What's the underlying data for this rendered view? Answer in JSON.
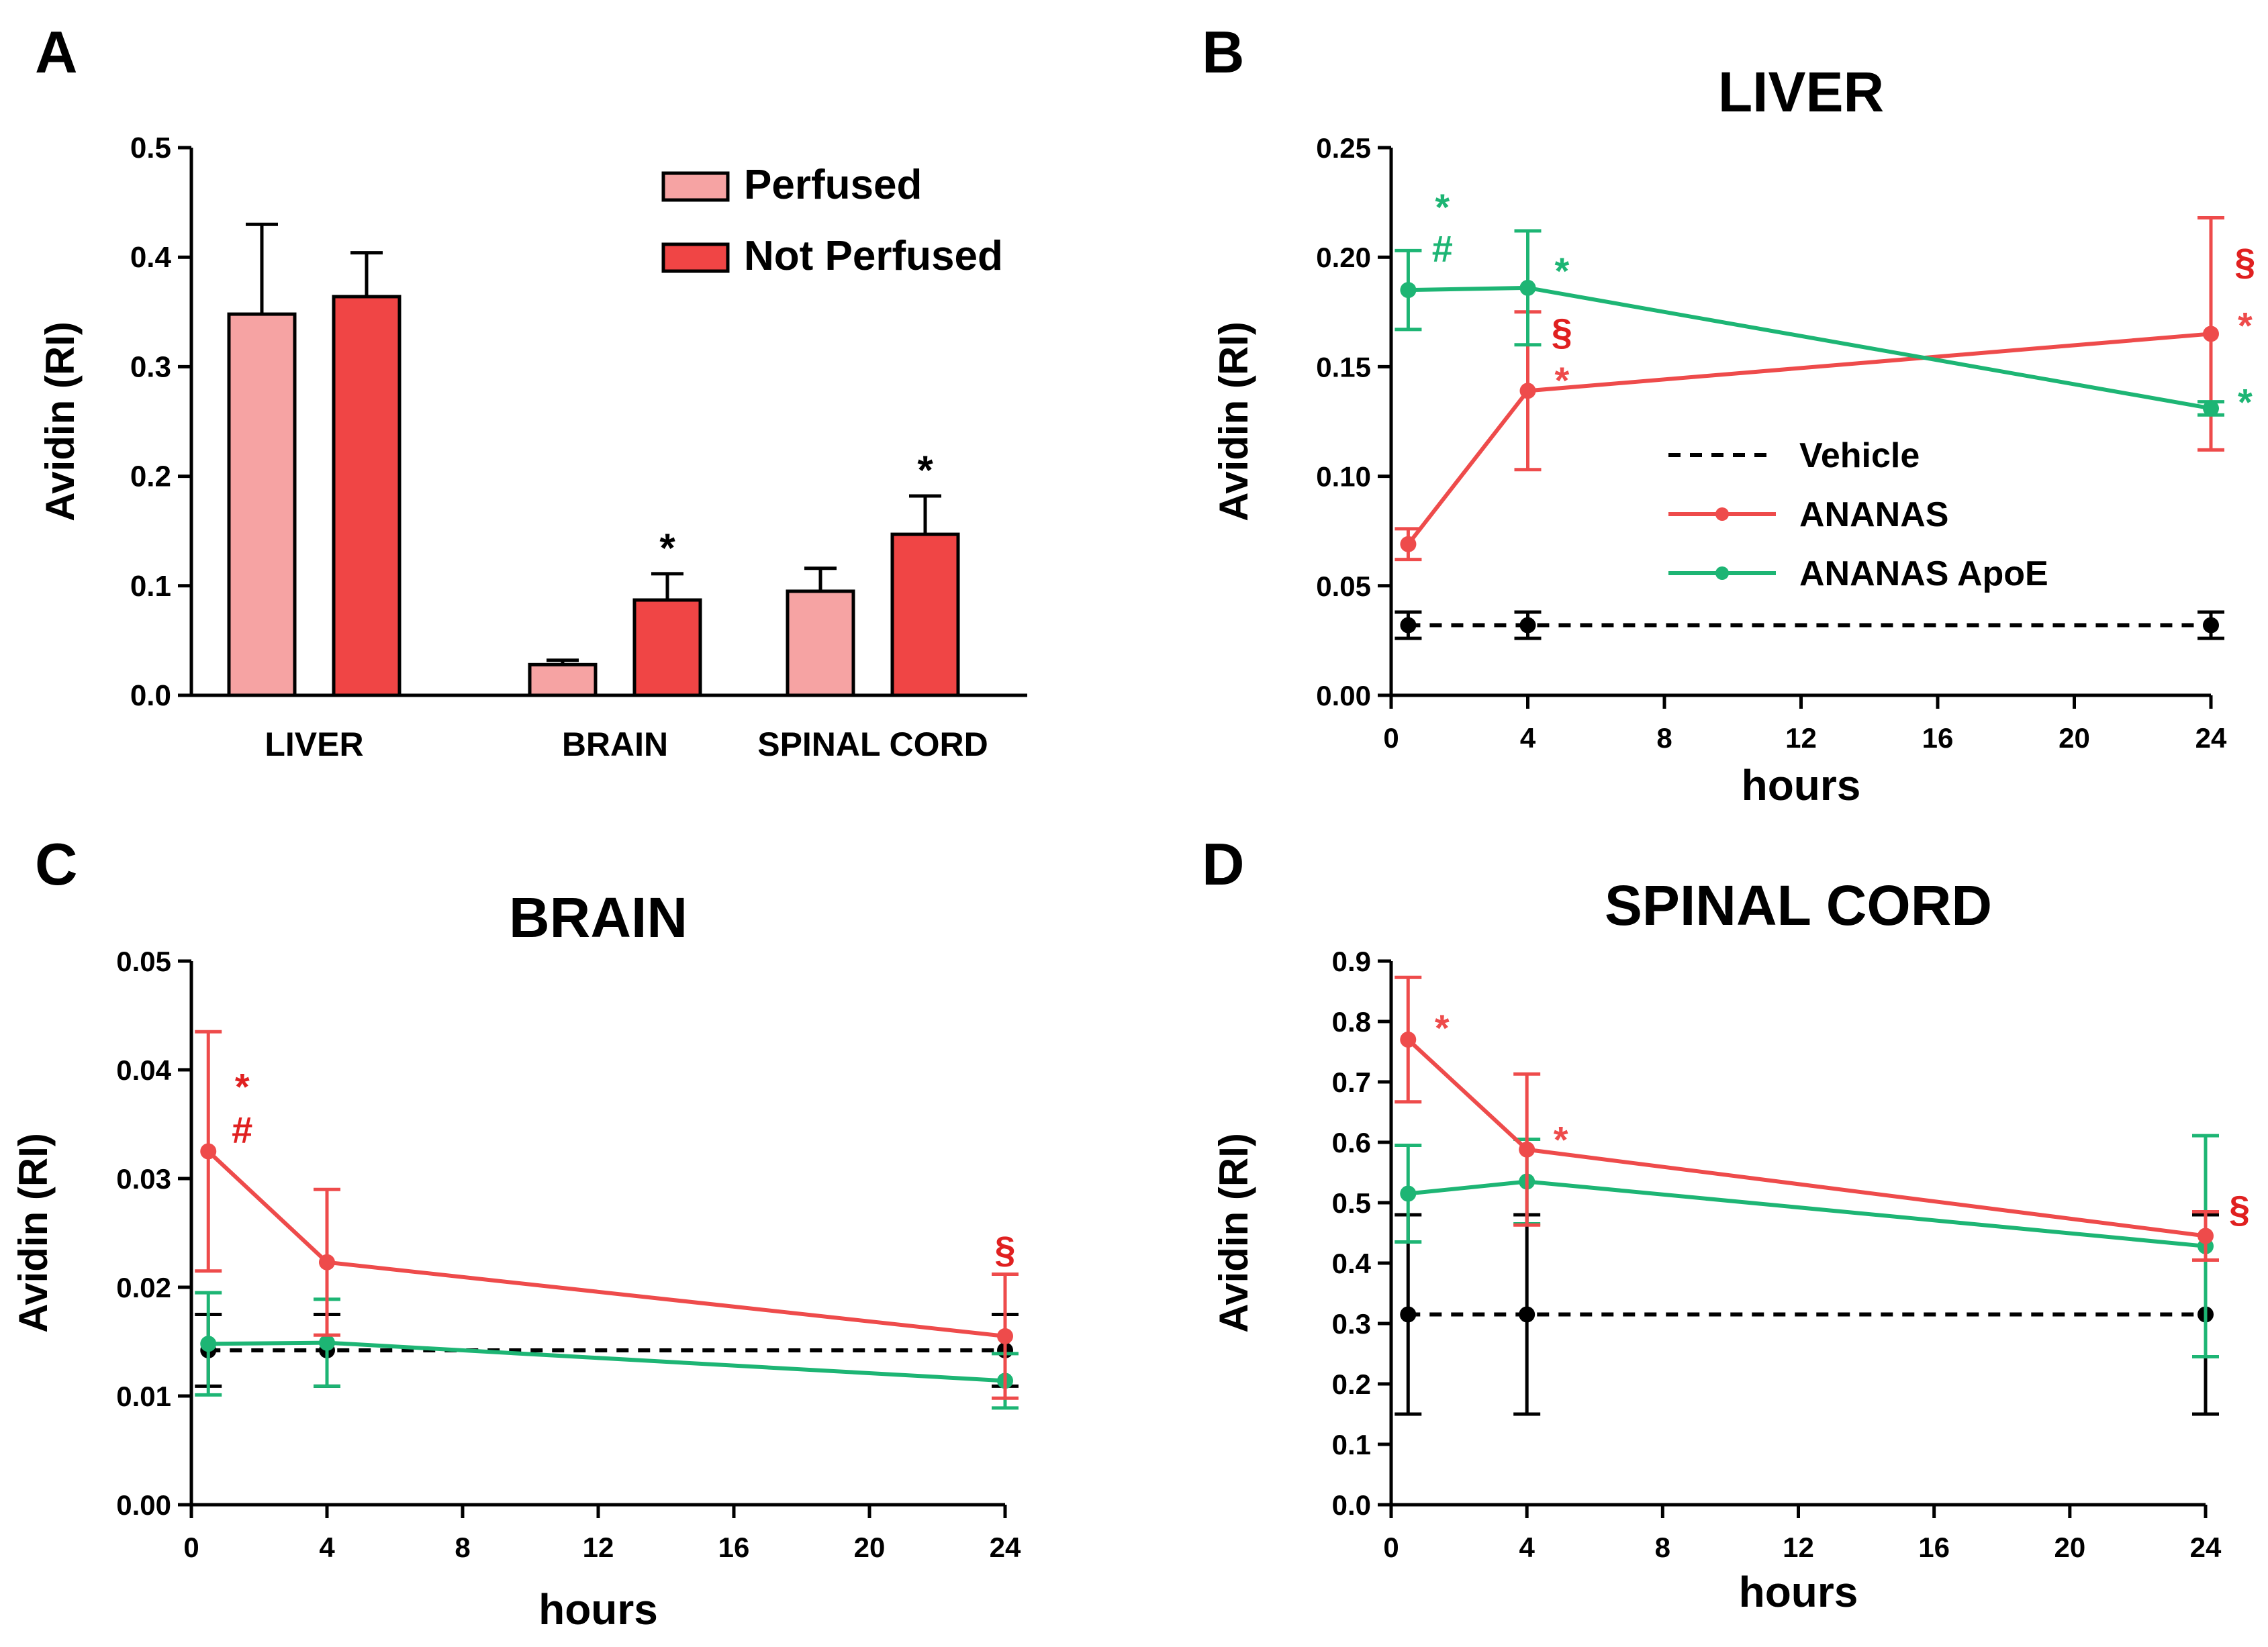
{
  "chart_data": [
    {
      "panel": "A",
      "type": "bar",
      "title": "",
      "ylabel": "Avidin (RI)",
      "xlabel": "",
      "ylim": [
        0,
        0.5
      ],
      "yticks": [
        "0.0",
        "0.1",
        "0.2",
        "0.3",
        "0.4",
        "0.5"
      ],
      "categories": [
        "LIVER",
        "BRAIN",
        "SPINAL CORD"
      ],
      "legend_position": "top-right",
      "series": [
        {
          "name": "Perfused",
          "color": "#F6A3A3",
          "values": [
            0.348,
            0.028,
            0.095
          ],
          "errors": [
            0.082,
            0.004,
            0.021
          ]
        },
        {
          "name": "Not Perfused",
          "color": "#F04545",
          "values": [
            0.364,
            0.087,
            0.147
          ],
          "errors": [
            0.04,
            0.024,
            0.035
          ]
        }
      ],
      "annotations": [
        {
          "text": "*",
          "category": 1,
          "series": 1
        },
        {
          "text": "*",
          "category": 2,
          "series": 1
        }
      ]
    },
    {
      "panel": "B",
      "type": "line",
      "title": "LIVER",
      "ylabel": "Avidin (RI)",
      "xlabel": "hours",
      "xlim": [
        0,
        24
      ],
      "xticks": [
        "0",
        "4",
        "8",
        "12",
        "16",
        "20",
        "24"
      ],
      "ylim": [
        0,
        0.25
      ],
      "yticks": [
        "0.00",
        "0.05",
        "0.10",
        "0.15",
        "0.20",
        "0.25"
      ],
      "legend_position": "center",
      "legend": [
        {
          "label": "Vehicle",
          "color": "#000000",
          "dashed": true
        },
        {
          "label": "ANANAS",
          "color": "#EE4B4B",
          "dashed": false
        },
        {
          "label": "ANANAS ApoE",
          "color": "#1DB574",
          "dashed": false
        }
      ],
      "series": [
        {
          "name": "Vehicle",
          "color": "#000000",
          "dashed": true,
          "x": [
            0.5,
            4,
            24
          ],
          "y": [
            0.032,
            0.032,
            0.032
          ],
          "errors": [
            0.006,
            0.006,
            0.006
          ]
        },
        {
          "name": "ANANAS",
          "color": "#EE4B4B",
          "dashed": false,
          "x": [
            0.5,
            4,
            24
          ],
          "y": [
            0.069,
            0.139,
            0.165
          ],
          "errors": [
            0.007,
            0.036,
            0.053
          ]
        },
        {
          "name": "ANANAS ApoE",
          "color": "#1DB574",
          "dashed": false,
          "x": [
            0.5,
            4,
            24
          ],
          "y": [
            0.185,
            0.186,
            0.131
          ],
          "errors": [
            0.018,
            0.026,
            0.003
          ]
        }
      ],
      "annotations": [
        {
          "text": "*",
          "x": 1.5,
          "y": 0.223,
          "color": "#1DB574"
        },
        {
          "text": "#",
          "x": 1.5,
          "y": 0.204,
          "color": "#1DB574"
        },
        {
          "text": "*",
          "x": 5.0,
          "y": 0.194,
          "color": "#1DB574"
        },
        {
          "text": "§",
          "x": 5.0,
          "y": 0.166,
          "color": "#E02020"
        },
        {
          "text": "*",
          "x": 5.0,
          "y": 0.144,
          "color": "#EE4B4B"
        },
        {
          "text": "§",
          "x": 25.0,
          "y": 0.198,
          "color": "#E02020"
        },
        {
          "text": "*",
          "x": 25.0,
          "y": 0.169,
          "color": "#EE4B4B"
        },
        {
          "text": "*",
          "x": 25.0,
          "y": 0.134,
          "color": "#1DB574"
        }
      ]
    },
    {
      "panel": "C",
      "type": "line",
      "title": "BRAIN",
      "ylabel": "Avidin (RI)",
      "xlabel": "hours",
      "xlim": [
        0,
        24
      ],
      "xticks": [
        "0",
        "4",
        "8",
        "12",
        "16",
        "20",
        "24"
      ],
      "ylim": [
        0,
        0.05
      ],
      "yticks": [
        "0.00",
        "0.01",
        "0.02",
        "0.03",
        "0.04",
        "0.05"
      ],
      "series": [
        {
          "name": "Vehicle",
          "color": "#000000",
          "dashed": true,
          "x": [
            0.5,
            4,
            24
          ],
          "y": [
            0.0142,
            0.0142,
            0.0142
          ],
          "errors": [
            0.0033,
            0.0033,
            0.0033
          ]
        },
        {
          "name": "ANANAS ApoE",
          "color": "#1DB574",
          "dashed": false,
          "x": [
            0.5,
            4,
            24
          ],
          "y": [
            0.0148,
            0.0149,
            0.0114
          ],
          "errors": [
            0.0047,
            0.004,
            0.0025
          ]
        },
        {
          "name": "ANANAS",
          "color": "#EE4B4B",
          "dashed": false,
          "x": [
            0.5,
            4,
            24
          ],
          "y": [
            0.0325,
            0.0223,
            0.0155
          ],
          "errors": [
            0.011,
            0.0067,
            0.0057
          ]
        }
      ],
      "annotations": [
        {
          "text": "*",
          "x": 1.5,
          "y": 0.0385,
          "color": "#E02020"
        },
        {
          "text": "#",
          "x": 1.5,
          "y": 0.0345,
          "color": "#E02020"
        },
        {
          "text": "§",
          "x": 24,
          "y": 0.0235,
          "color": "#E02020"
        }
      ]
    },
    {
      "panel": "D",
      "type": "line",
      "title": "SPINAL CORD",
      "ylabel": "Avidin (RI)",
      "xlabel": "hours",
      "xlim": [
        0,
        24
      ],
      "xticks": [
        "0",
        "4",
        "8",
        "12",
        "16",
        "20",
        "24"
      ],
      "ylim": [
        0,
        0.9
      ],
      "yticks": [
        "0.0",
        "0.1",
        "0.2",
        "0.3",
        "0.4",
        "0.5",
        "0.6",
        "0.7",
        "0.8",
        "0.9"
      ],
      "series": [
        {
          "name": "Vehicle",
          "color": "#000000",
          "dashed": true,
          "x": [
            0.5,
            4,
            24
          ],
          "y": [
            0.315,
            0.315,
            0.315
          ],
          "errors": [
            0.165,
            0.165,
            0.165
          ]
        },
        {
          "name": "ANANAS ApoE",
          "color": "#1DB574",
          "dashed": false,
          "x": [
            0.5,
            4,
            24
          ],
          "y": [
            0.515,
            0.535,
            0.428
          ],
          "errors": [
            0.08,
            0.07,
            0.183
          ]
        },
        {
          "name": "ANANAS",
          "color": "#EE4B4B",
          "dashed": false,
          "x": [
            0.5,
            4,
            24
          ],
          "y": [
            0.77,
            0.588,
            0.445
          ],
          "errors": [
            0.103,
            0.125,
            0.04
          ]
        }
      ],
      "annotations": [
        {
          "text": "*",
          "x": 1.5,
          "y": 0.79,
          "color": "#EE4B4B"
        },
        {
          "text": "*",
          "x": 5.0,
          "y": 0.605,
          "color": "#EE4B4B"
        },
        {
          "text": "§",
          "x": 25.0,
          "y": 0.49,
          "color": "#E02020"
        }
      ]
    }
  ]
}
